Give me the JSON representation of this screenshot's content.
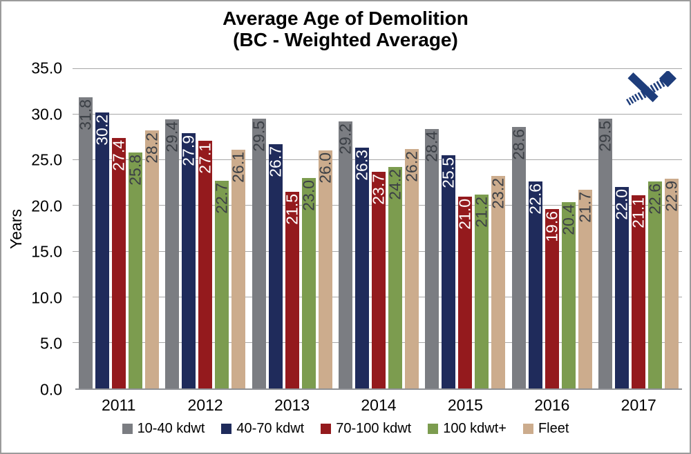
{
  "title": {
    "line1": "Average Age of Demolition",
    "line2": "(BC - Weighted Average)"
  },
  "y_axis": {
    "title": "Years",
    "tick_labels": [
      "35.0",
      "30.0",
      "25.0",
      "20.0",
      "15.0",
      "10.0",
      "5.0",
      "0.0"
    ]
  },
  "x_axis": {
    "tick_labels": [
      "2011",
      "2012",
      "2013",
      "2014",
      "2015",
      "2016",
      "2017"
    ]
  },
  "legend": {
    "items": [
      "10-40 kdwt",
      "40-70 kdwt",
      "70-100 kdwt",
      "100 kdwt+",
      "Fleet"
    ]
  },
  "logo": {
    "icon": "crossed-ribbons-logo",
    "color": "#1e3d7b"
  },
  "chart_data": {
    "type": "bar",
    "title": "Average Age of Demolition",
    "subtitle": "(BC - Weighted Average)",
    "ylabel": "Years",
    "ylim": [
      0,
      35
    ],
    "ytick_step": 5.0,
    "grid": true,
    "legend_position": "bottom",
    "value_labels": "rotated 90deg reading bottom-to-top, at top inside bars, one decimal",
    "categories": [
      "2011",
      "2012",
      "2013",
      "2014",
      "2015",
      "2016",
      "2017"
    ],
    "series": [
      {
        "name": "10-40 kdwt",
        "color": "#7b7d82",
        "label_color": "#3c4046",
        "values": [
          31.8,
          29.4,
          29.5,
          29.2,
          28.4,
          28.6,
          29.5
        ]
      },
      {
        "name": "40-70 kdwt",
        "color": "#1f2b5b",
        "label_color": "#ffffff",
        "values": [
          30.2,
          27.9,
          26.7,
          26.3,
          25.5,
          22.6,
          22.0
        ]
      },
      {
        "name": "70-100 kdwt",
        "color": "#941a1d",
        "label_color": "#ffffff",
        "values": [
          27.4,
          27.1,
          21.5,
          23.7,
          21.0,
          19.6,
          21.1
        ]
      },
      {
        "name": "100 kdwt+",
        "color": "#7c9c4f",
        "label_color": "#3c4046",
        "values": [
          25.8,
          22.7,
          23.0,
          24.2,
          21.2,
          20.4,
          22.6
        ]
      },
      {
        "name": "Fleet",
        "color": "#ccac8d",
        "label_color": "#3c4046",
        "values": [
          28.2,
          26.1,
          26.0,
          26.2,
          23.2,
          21.7,
          22.9
        ]
      }
    ]
  }
}
